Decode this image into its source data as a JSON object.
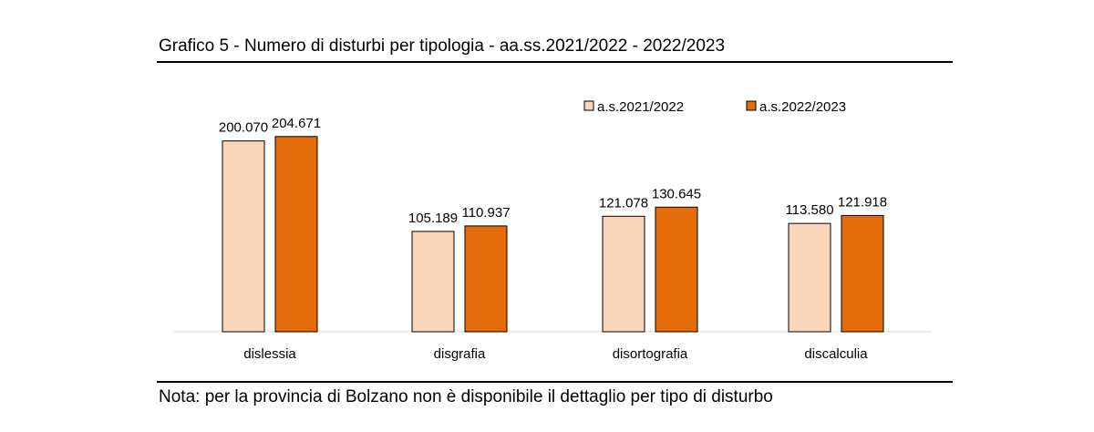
{
  "title": "Grafico 5 - Numero di disturbi per tipologia - aa.ss.2021/2022 - 2022/2023",
  "note": "Nota: per la provincia di Bolzano non è disponibile il dettaglio per tipo di disturbo",
  "chart_data": {
    "type": "bar",
    "title": "Grafico 5 - Numero di disturbi per tipologia - aa.ss.2021/2022 - 2022/2023",
    "xlabel": "",
    "ylabel": "",
    "categories": [
      "dislessia",
      "disgrafia",
      "disortografia",
      "discalculia"
    ],
    "series": [
      {
        "name": "a.s.2021/2022",
        "values": [
          200070,
          105189,
          121078,
          113580
        ],
        "labels": [
          "200.070",
          "105.189",
          "121.078",
          "113.580"
        ],
        "color": "#F9D5B9"
      },
      {
        "name": "a.s.2022/2023",
        "values": [
          204671,
          110937,
          130645,
          121918
        ],
        "labels": [
          "204.671",
          "110.937",
          "130.645",
          "121.918"
        ],
        "color": "#E46C0A"
      }
    ],
    "ylim": [
      0,
      215000
    ],
    "grid": false,
    "legend": "top-right"
  }
}
